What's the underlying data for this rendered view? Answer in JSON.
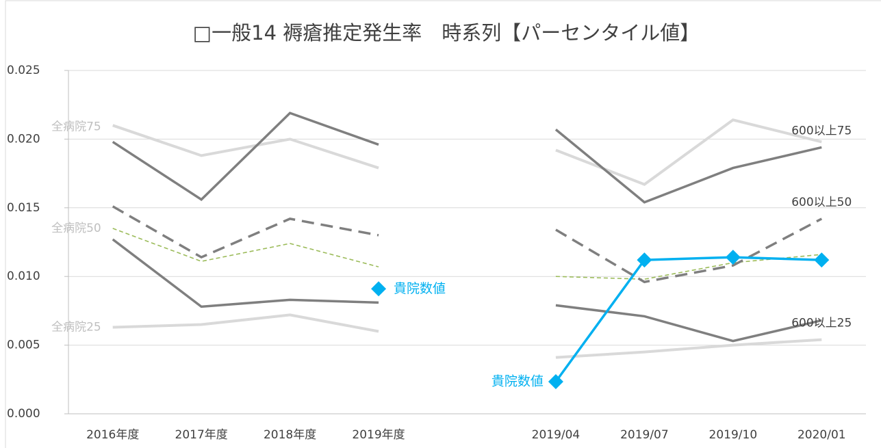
{
  "chart_data": {
    "type": "line",
    "title": "□一般14 褥瘡推定発生率　時系列【パーセンタイル値】",
    "categories": [
      "2016年度",
      "2017年度",
      "2018年度",
      "2019年度",
      null,
      "2019/04",
      "2019/07",
      "2019/10",
      "2020/01"
    ],
    "ylim": [
      0,
      0.025
    ],
    "yticks": [
      {
        "value": 0,
        "label": "0.000"
      },
      {
        "value": 0.005,
        "label": "0.005"
      },
      {
        "value": 0.01,
        "label": "0.010"
      },
      {
        "value": 0.015,
        "label": "0.015"
      },
      {
        "value": 0.02,
        "label": "0.020"
      },
      {
        "value": 0.025,
        "label": "0.025"
      }
    ],
    "grid": true,
    "series": [
      {
        "name": "全病院75",
        "color": "#d9d9d9",
        "line_style": "solid",
        "values": [
          0.021,
          0.0188,
          0.02,
          0.0179,
          null,
          0.0192,
          0.0167,
          0.0214,
          0.0198
        ]
      },
      {
        "name": "全病院50",
        "color": "#9bbb59",
        "line_style": "dashed",
        "values": [
          0.0135,
          0.0111,
          0.0124,
          0.0107,
          null,
          0.01,
          0.0098,
          0.011,
          0.0116
        ]
      },
      {
        "name": "全病院25",
        "color": "#d9d9d9",
        "line_style": "solid",
        "values": [
          0.0063,
          0.0065,
          0.0072,
          0.006,
          null,
          0.0041,
          0.0045,
          0.005,
          0.0054
        ]
      },
      {
        "name": "600以上75",
        "color": "#7f7f7f",
        "line_style": "solid",
        "values": [
          0.0198,
          0.0156,
          0.0219,
          0.0196,
          null,
          0.0207,
          0.0154,
          0.0179,
          0.0194
        ]
      },
      {
        "name": "600以上50",
        "color": "#7f7f7f",
        "line_style": "dashed",
        "values": [
          0.0151,
          0.0114,
          0.0142,
          0.013,
          null,
          0.0134,
          0.0096,
          0.0108,
          0.0142
        ]
      },
      {
        "name": "600以上25",
        "color": "#7f7f7f",
        "line_style": "solid",
        "values": [
          0.0127,
          0.0078,
          0.0083,
          0.0081,
          null,
          0.0079,
          0.0071,
          0.0053,
          0.0068
        ]
      },
      {
        "name": "貴院数値",
        "color": "#00b0f0",
        "line_style": "solid",
        "marker": "diamond",
        "values": [
          null,
          null,
          null,
          0.0091,
          null,
          0.00234,
          0.0112,
          0.0114,
          0.0112
        ]
      }
    ]
  }
}
